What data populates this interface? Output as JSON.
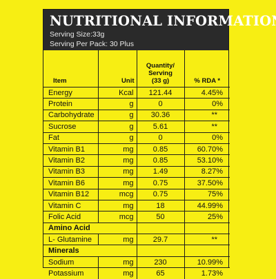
{
  "header": {
    "title": "NUTRITIONAL INFORMATION",
    "serving_size": "Serving Size:33g",
    "serving_per_pack": "Serving Per Pack: 30 Plus"
  },
  "columns": {
    "item": "Item",
    "unit": "Unit",
    "qty_line1": "Quantity/",
    "qty_line2": "Serving",
    "qty_line3": "(33 g)",
    "rda": "% RDA *"
  },
  "rows": [
    {
      "item": "Energy",
      "unit": "Kcal",
      "qty": "121.44",
      "rda": "4.45%"
    },
    {
      "item": "Protein",
      "unit": "g",
      "qty": "0",
      "rda": "0%"
    },
    {
      "item": "Carbohydrate",
      "unit": "g",
      "qty": "30.36",
      "rda": "**"
    },
    {
      "item": "Sucrose",
      "unit": "g",
      "qty": "5.61",
      "rda": "**"
    },
    {
      "item": "Fat",
      "unit": "g",
      "qty": "0",
      "rda": "0%"
    },
    {
      "item": "Vitamin B1",
      "unit": "mg",
      "qty": "0.85",
      "rda": "60.70%"
    },
    {
      "item": "Vitamin B2",
      "unit": "mg",
      "qty": "0.85",
      "rda": "53.10%"
    },
    {
      "item": "Vitamin B3",
      "unit": "mg",
      "qty": "1.49",
      "rda": "8.27%"
    },
    {
      "item": "Vitamin B6",
      "unit": "mg",
      "qty": "0.75",
      "rda": "37.50%"
    },
    {
      "item": "Vitamin B12",
      "unit": "mcg",
      "qty": "0.75",
      "rda": "75%"
    },
    {
      "item": "Vitamin C",
      "unit": "mg",
      "qty": "18",
      "rda": "44.99%"
    },
    {
      "item": "Folic Acid",
      "unit": "mcg",
      "qty": "50",
      "rda": "25%"
    }
  ],
  "amino": {
    "heading": "Amino Acid",
    "rows": [
      {
        "item": "L- Glutamine",
        "unit": "mg",
        "qty": "29.7",
        "rda": "**"
      }
    ]
  },
  "minerals": {
    "heading": "Minerals",
    "rows": [
      {
        "item": "Sodium",
        "unit": "mg",
        "qty": "230",
        "rda": "10.99%"
      },
      {
        "item": "Potassium",
        "unit": "mg",
        "qty": "65",
        "rda": "1.73%"
      }
    ]
  }
}
